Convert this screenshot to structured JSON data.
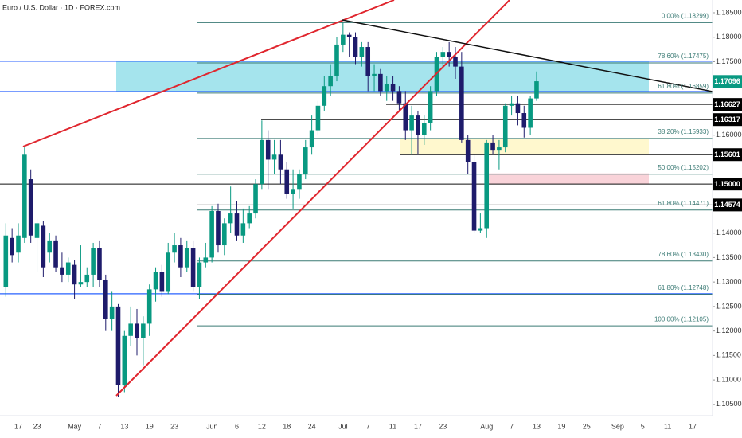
{
  "chart_data": {
    "type": "candlestick",
    "title": "Euro / U.S. Dollar · 1D · FOREX.com",
    "categories": [
      null,
      null,
      "17",
      null,
      null,
      "23",
      null,
      null,
      null,
      null,
      null,
      "May",
      null,
      null,
      null,
      "7",
      null,
      null,
      null,
      "13",
      null,
      null,
      null,
      "19",
      null,
      null,
      null,
      "23",
      null,
      null,
      null,
      null,
      null,
      "Jun",
      null,
      null,
      null,
      "6",
      null,
      null,
      null,
      "12",
      null,
      null,
      null,
      "18",
      null,
      null,
      null,
      "24",
      null,
      null,
      null,
      null,
      "Jul",
      null,
      null,
      null,
      "7",
      null,
      null,
      null,
      "11",
      null,
      null,
      null,
      "17",
      null,
      null,
      null,
      "23",
      null,
      null,
      null,
      null,
      null,
      null,
      "Aug",
      null,
      null,
      null,
      "7",
      null,
      null,
      null,
      "13",
      null,
      null,
      null,
      "19",
      null,
      null,
      null,
      "25",
      null,
      null,
      null,
      null,
      "Sep",
      null,
      null,
      null,
      "5",
      null,
      null,
      null,
      "11",
      null,
      null,
      null,
      "17",
      null,
      null,
      null
    ],
    "open": [
      1.129,
      1.139,
      1.136,
      1.139,
      1.151,
      1.139,
      1.1415,
      1.136,
      1.1385,
      1.133,
      1.1315,
      1.1335,
      1.1295,
      1.13,
      1.1315,
      1.137,
      1.1305,
      1.1225,
      1.125,
      1.109,
      1.119,
      1.1215,
      1.1185,
      1.1215,
      1.1285,
      1.132,
      1.128,
      1.136,
      1.1375,
      1.133,
      1.137,
      1.129,
      1.134,
      1.135,
      1.1445,
      1.1375,
      1.142,
      1.144,
      1.1395,
      1.142,
      1.144,
      1.15,
      1.159,
      1.155,
      1.156,
      1.153,
      1.148,
      1.149,
      1.152,
      1.1575,
      1.161,
      1.166,
      1.17,
      1.172,
      1.1785,
      1.1805,
      1.18,
      1.176,
      1.178,
      1.172,
      1.1725,
      1.169,
      1.1705,
      1.169,
      1.1665,
      1.161,
      1.164,
      1.16,
      1.1625,
      1.169,
      1.176,
      1.177,
      1.176,
      1.174,
      1.159,
      1.1545,
      1.1405,
      1.141,
      1.1585,
      1.157,
      1.1575,
      1.166,
      1.1665,
      1.1645,
      1.1615,
      1.1675,
      null,
      null,
      null,
      null,
      null,
      null,
      null,
      null,
      null,
      null,
      null,
      null,
      null,
      null,
      null,
      null,
      null,
      null,
      null,
      null,
      null,
      null,
      null,
      null,
      null,
      null,
      null,
      null
    ],
    "high": [
      1.142,
      1.141,
      1.142,
      1.1575,
      1.153,
      1.143,
      1.1425,
      1.14,
      1.1395,
      1.136,
      1.135,
      1.1345,
      1.1375,
      1.133,
      1.138,
      1.1385,
      1.1315,
      1.128,
      1.1255,
      1.12,
      1.125,
      1.1245,
      1.123,
      1.1295,
      1.133,
      1.1335,
      1.138,
      1.14,
      1.139,
      1.1385,
      1.1385,
      1.135,
      1.138,
      1.1455,
      1.146,
      1.143,
      1.1495,
      1.1465,
      1.145,
      1.1455,
      1.151,
      1.163,
      1.161,
      1.159,
      1.159,
      1.1545,
      1.153,
      1.153,
      1.159,
      1.164,
      1.167,
      1.172,
      1.1745,
      1.18,
      1.183,
      1.181,
      1.181,
      1.179,
      1.179,
      1.1745,
      1.1735,
      1.172,
      1.172,
      1.17,
      1.169,
      1.166,
      1.165,
      1.164,
      1.17,
      1.177,
      1.178,
      1.179,
      1.178,
      1.177,
      1.16,
      1.156,
      1.144,
      1.159,
      1.16,
      1.159,
      1.1665,
      1.168,
      1.168,
      1.166,
      1.168,
      1.173,
      null,
      null,
      null,
      null,
      null,
      null,
      null,
      null,
      null,
      null,
      null,
      null,
      null,
      null,
      null,
      null,
      null,
      null,
      null,
      null,
      null,
      null,
      null,
      null,
      null,
      null,
      null,
      null
    ],
    "low": [
      1.127,
      1.134,
      1.134,
      1.138,
      1.138,
      1.132,
      1.131,
      1.134,
      1.132,
      1.13,
      1.13,
      1.1265,
      1.129,
      1.129,
      1.129,
      1.129,
      1.12,
      1.12,
      1.1065,
      1.1075,
      1.117,
      1.115,
      1.113,
      1.119,
      1.126,
      1.127,
      1.1275,
      1.134,
      1.131,
      1.132,
      1.128,
      1.1265,
      1.133,
      1.134,
      1.136,
      1.1355,
      1.14,
      1.1385,
      1.138,
      1.141,
      1.143,
      1.149,
      1.149,
      1.152,
      1.15,
      1.147,
      1.145,
      1.147,
      1.151,
      1.156,
      1.16,
      1.165,
      1.168,
      1.171,
      1.177,
      1.176,
      1.1745,
      1.174,
      1.169,
      1.169,
      1.168,
      1.167,
      1.167,
      1.165,
      1.159,
      1.156,
      1.156,
      1.158,
      1.161,
      1.168,
      1.174,
      1.174,
      1.1715,
      1.1585,
      1.152,
      1.14,
      1.14,
      1.139,
      1.156,
      1.153,
      1.1565,
      1.164,
      1.162,
      1.1595,
      1.16,
      1.167,
      null,
      null,
      null,
      null,
      null,
      null,
      null,
      null,
      null,
      null,
      null,
      null,
      null,
      null,
      null,
      null,
      null,
      null,
      null,
      null,
      null,
      null,
      null,
      null,
      null,
      null,
      null,
      null
    ],
    "close": [
      1.1395,
      1.1355,
      1.1395,
      1.156,
      1.1395,
      1.142,
      1.133,
      1.1385,
      1.133,
      1.1315,
      1.134,
      1.1295,
      1.13,
      1.1315,
      1.137,
      1.1305,
      1.1225,
      1.125,
      1.109,
      1.119,
      1.1215,
      1.1185,
      1.1215,
      1.1285,
      1.132,
      1.128,
      1.136,
      1.1375,
      1.133,
      1.137,
      1.129,
      1.134,
      1.135,
      1.1445,
      1.1375,
      1.142,
      1.144,
      1.1395,
      1.142,
      1.144,
      1.15,
      1.159,
      1.155,
      1.156,
      1.153,
      1.148,
      1.149,
      1.152,
      1.1575,
      1.161,
      1.166,
      1.17,
      1.172,
      1.1785,
      1.1805,
      1.18,
      1.176,
      1.178,
      1.172,
      1.1725,
      1.169,
      1.1705,
      1.169,
      1.1665,
      1.161,
      1.164,
      1.16,
      1.1625,
      1.169,
      1.176,
      1.177,
      1.176,
      1.174,
      1.159,
      1.1545,
      1.1405,
      1.141,
      1.1585,
      1.157,
      1.1575,
      1.166,
      1.1665,
      1.1645,
      1.1615,
      1.1675,
      1.171,
      null,
      null,
      null,
      null,
      null,
      null,
      null,
      null,
      null,
      null,
      null,
      null,
      null,
      null,
      null,
      null,
      null,
      null,
      null,
      null,
      null,
      null,
      null,
      null,
      null,
      null,
      null,
      null
    ],
    "up_color": "#089981",
    "down_color": "#1e1b6b",
    "ylim": [
      1.1027,
      1.1876
    ],
    "yticks": [
      {
        "value": 1.185,
        "label": "1.18500"
      },
      {
        "value": 1.18,
        "label": "1.18000"
      },
      {
        "value": 1.175,
        "label": "1.17500"
      },
      {
        "value": 1.16,
        "label": "1.16000"
      },
      {
        "value": 1.14,
        "label": "1.14000"
      },
      {
        "value": 1.135,
        "label": "1.13500"
      },
      {
        "value": 1.13,
        "label": "1.13000"
      },
      {
        "value": 1.125,
        "label": "1.12500"
      },
      {
        "value": 1.12,
        "label": "1.12000"
      },
      {
        "value": 1.115,
        "label": "1.11500"
      },
      {
        "value": 1.11,
        "label": "1.11000"
      },
      {
        "value": 1.105,
        "label": "1.10500"
      }
    ],
    "zones": [
      {
        "low": 1.1689,
        "high": 1.1751,
        "color": "#8fdde9"
      },
      {
        "low": 1.15601,
        "high": 1.15933,
        "color": "#fff6c2"
      },
      {
        "low": 1.15,
        "high": 1.1522,
        "color": "#f7c8cf"
      }
    ],
    "horizontal_lines": {
      "color": "#2962ff",
      "values": [
        1.1751,
        1.1689,
        1.1276
      ]
    },
    "fib": {
      "color": "#3a7a74",
      "levels": [
        {
          "label": "0.00% (1.18299)",
          "value": 1.18299
        },
        {
          "label": "78.60% (1.17475)",
          "value": 1.17475
        },
        {
          "label": "61.80% (1.16859)",
          "value": 1.16859
        },
        {
          "label": "38.20% (1.15933)",
          "value": 1.15933
        },
        {
          "label": "50.00% (1.15202)",
          "value": 1.15202
        },
        {
          "label": "61.80% (1.14471)",
          "value": 1.14471
        },
        {
          "label": "78.60% (1.13430)",
          "value": 1.1343
        },
        {
          "label": "61.80% (1.12748)",
          "value": 1.12748
        },
        {
          "label": "100.00% (1.12105)",
          "value": 1.12105
        }
      ]
    },
    "price_levels": [
      {
        "label": "1.16627",
        "value": 1.16627
      },
      {
        "label": "1.16317",
        "value": 1.16317
      },
      {
        "label": "1.15601",
        "value": 1.15601
      },
      {
        "label": "1.15000",
        "value": 1.15
      },
      {
        "label": "1.14574",
        "value": 1.14574
      }
    ],
    "last_price": {
      "label": "1.17096",
      "value": 1.17096,
      "color": "#089981"
    }
  }
}
